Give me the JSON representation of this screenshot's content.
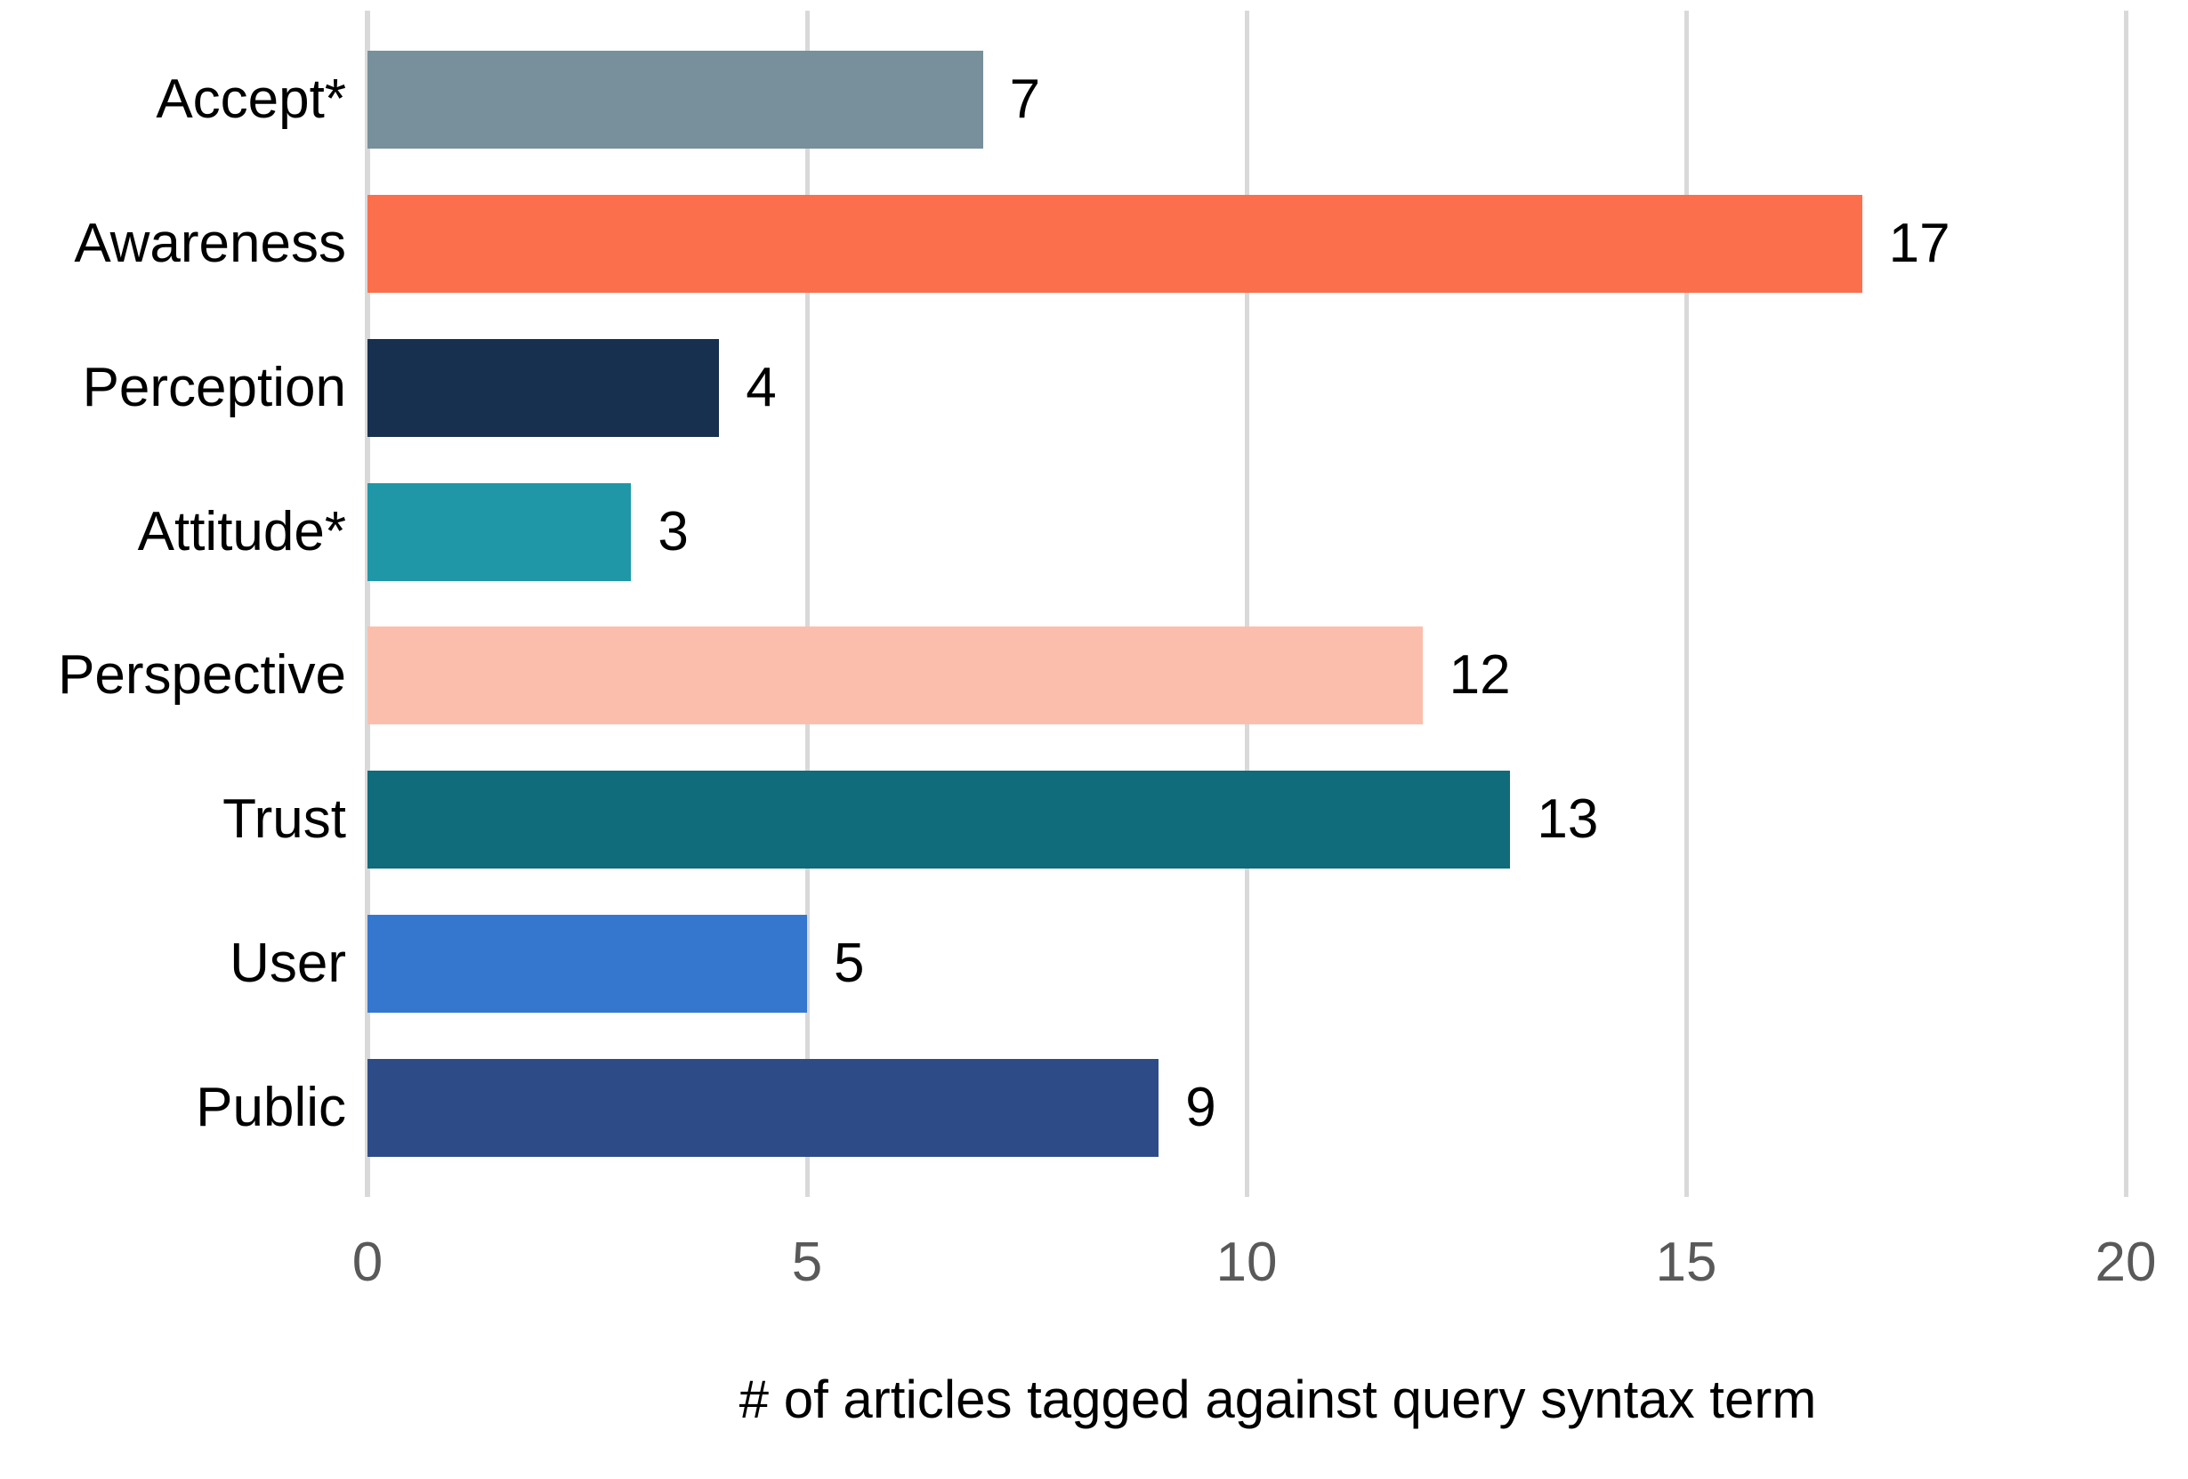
{
  "chart_data": {
    "type": "bar",
    "orientation": "horizontal",
    "title": "",
    "xlabel": "# of articles tagged against query syntax term",
    "ylabel": "",
    "categories": [
      "Accept*",
      "Awareness",
      "Perception",
      "Attitude*",
      "Perspective",
      "Trust",
      "User",
      "Public"
    ],
    "values": [
      7,
      17,
      4,
      3,
      12,
      13,
      5,
      9
    ],
    "bar_colors": [
      "#78909B",
      "#FC6F4C",
      "#17304F",
      "#1F97A7",
      "#FCBEAC",
      "#106B7A",
      "#3577CE",
      "#2D4C87"
    ],
    "xlim": [
      0,
      20
    ],
    "xticks": [
      0,
      5,
      10,
      15,
      20
    ],
    "grid": true,
    "gridline_color": "#D9D9D9",
    "tick_label_color": "#595959",
    "data_label_color": "#000000",
    "axis_title_color": "#000000",
    "legend": false
  }
}
